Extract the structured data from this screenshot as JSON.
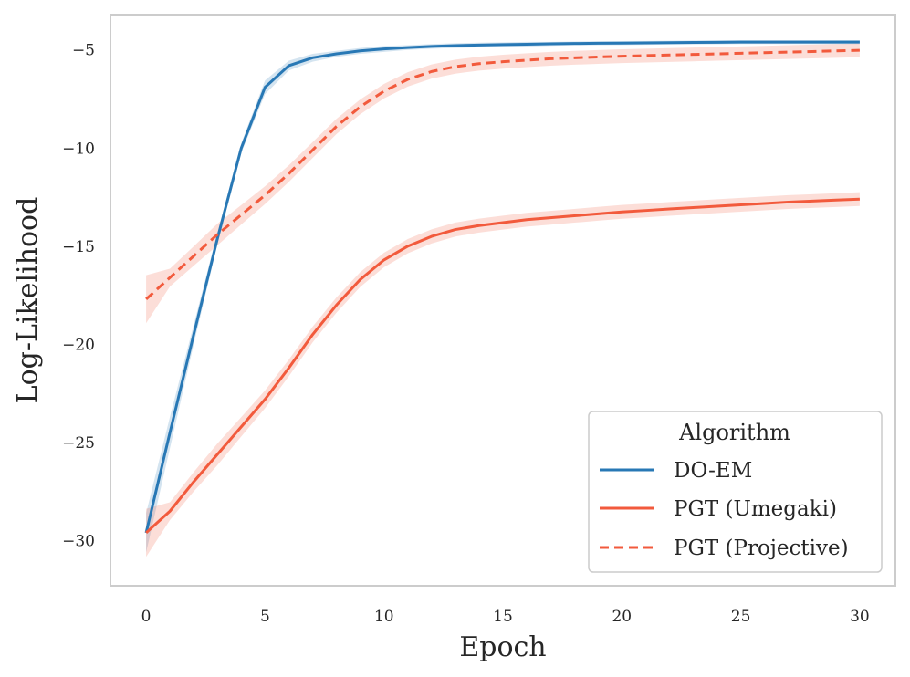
{
  "chart_data": {
    "type": "line",
    "xlabel": "Epoch",
    "ylabel": "Log-Likelihood",
    "xlim": [
      -1.5,
      31.5
    ],
    "ylim": [
      -32.3,
      -3.2
    ],
    "xticks": [
      0,
      5,
      10,
      15,
      20,
      25,
      30
    ],
    "xtick_labels": [
      "0",
      "5",
      "10",
      "15",
      "20",
      "25",
      "30"
    ],
    "yticks": [
      -5,
      -10,
      -15,
      -20,
      -25,
      -30
    ],
    "ytick_labels": [
      "−5",
      "−10",
      "−15",
      "−20",
      "−25",
      "−30"
    ],
    "grid": false,
    "legend": {
      "title": "Algorithm",
      "placement": "lower-right",
      "entries": [
        "DO-EM",
        "PGT (Umegaki)",
        "PGT (Projective)"
      ]
    },
    "series": [
      {
        "name": "DO-EM",
        "color": "#2878b5",
        "dash": "solid",
        "x": [
          0,
          1,
          2,
          3,
          4,
          5,
          6,
          7,
          8,
          9,
          10,
          11,
          12,
          13,
          14,
          15,
          16,
          17,
          18,
          19,
          20,
          21,
          22,
          23,
          24,
          25,
          26,
          27,
          28,
          29,
          30
        ],
        "y": [
          -29.6,
          -24.5,
          -19.5,
          -14.6,
          -10.0,
          -6.9,
          -5.8,
          -5.4,
          -5.2,
          -5.05,
          -4.95,
          -4.88,
          -4.82,
          -4.78,
          -4.75,
          -4.73,
          -4.71,
          -4.69,
          -4.67,
          -4.66,
          -4.65,
          -4.64,
          -4.63,
          -4.62,
          -4.61,
          -4.6,
          -4.6,
          -4.6,
          -4.6,
          -4.6,
          -4.6
        ],
        "band": [
          1.0,
          0.8,
          0.5,
          0.3,
          0.25,
          0.35,
          0.25,
          0.2,
          0.15,
          0.15,
          0.15,
          0.12,
          0.12,
          0.12,
          0.12,
          0.12,
          0.12,
          0.1,
          0.1,
          0.1,
          0.1,
          0.1,
          0.1,
          0.1,
          0.1,
          0.1,
          0.1,
          0.1,
          0.1,
          0.1,
          0.1
        ]
      },
      {
        "name": "PGT (Umegaki)",
        "color": "#f25a3c",
        "dash": "solid",
        "x": [
          0,
          1,
          2,
          3,
          4,
          5,
          6,
          7,
          8,
          9,
          10,
          11,
          12,
          13,
          14,
          15,
          16,
          17,
          18,
          19,
          20,
          21,
          22,
          23,
          24,
          25,
          26,
          27,
          28,
          29,
          30
        ],
        "y": [
          -29.6,
          -28.5,
          -27.0,
          -25.6,
          -24.2,
          -22.8,
          -21.2,
          -19.5,
          -18.0,
          -16.7,
          -15.7,
          -15.0,
          -14.5,
          -14.15,
          -13.95,
          -13.8,
          -13.65,
          -13.55,
          -13.45,
          -13.35,
          -13.25,
          -13.18,
          -13.1,
          -13.03,
          -12.96,
          -12.89,
          -12.82,
          -12.75,
          -12.7,
          -12.65,
          -12.6
        ]
      },
      {
        "name": "PGT (Projective)",
        "color": "#f25a3c",
        "dash": "dashed",
        "x": [
          0,
          1,
          2,
          3,
          4,
          5,
          6,
          7,
          8,
          9,
          10,
          11,
          12,
          13,
          14,
          15,
          16,
          17,
          18,
          19,
          20,
          21,
          22,
          23,
          24,
          25,
          26,
          27,
          28,
          29,
          30
        ],
        "y": [
          -17.7,
          -16.6,
          -15.5,
          -14.4,
          -13.4,
          -12.4,
          -11.3,
          -10.1,
          -8.9,
          -7.9,
          -7.1,
          -6.5,
          -6.1,
          -5.85,
          -5.7,
          -5.6,
          -5.52,
          -5.45,
          -5.4,
          -5.36,
          -5.32,
          -5.29,
          -5.26,
          -5.23,
          -5.2,
          -5.17,
          -5.14,
          -5.11,
          -5.08,
          -5.05,
          -5.02
        ]
      }
    ]
  }
}
